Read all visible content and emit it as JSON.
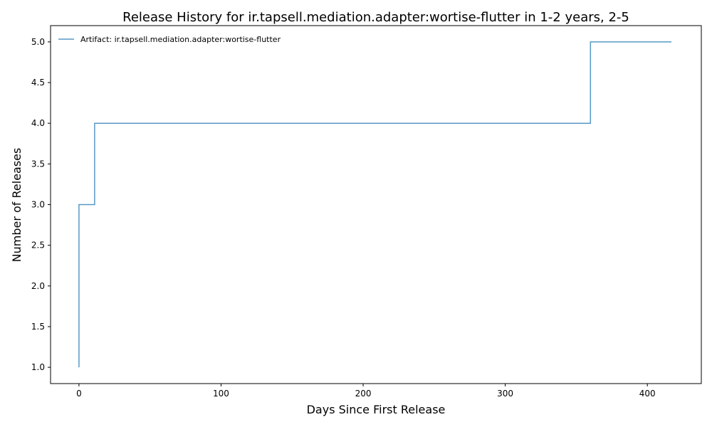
{
  "chart_data": {
    "type": "line",
    "title": "Release History for ir.tapsell.mediation.adapter:wortise-flutter in 1-2 years, 2-5",
    "xlabel": "Days Since First Release",
    "ylabel": "Number of Releases",
    "xlim": [
      -20,
      438
    ],
    "ylim": [
      0.8,
      5.2
    ],
    "xticks": [
      0,
      100,
      200,
      300,
      400
    ],
    "yticks": [
      1.0,
      1.5,
      2.0,
      2.5,
      3.0,
      3.5,
      4.0,
      4.5,
      5.0
    ],
    "xtick_labels": [
      "0",
      "100",
      "200",
      "300",
      "400"
    ],
    "ytick_labels": [
      "1.0",
      "1.5",
      "2.0",
      "2.5",
      "3.0",
      "3.5",
      "4.0",
      "4.5",
      "5.0"
    ],
    "grid": false,
    "legend_position": "top-left",
    "series": [
      {
        "name": "Artifact: ir.tapsell.mediation.adapter:wortise-flutter",
        "color": "#1f77b4",
        "step": "post",
        "x": [
          0,
          0,
          11,
          360,
          417
        ],
        "y": [
          1,
          3,
          4,
          5,
          5
        ]
      }
    ]
  }
}
